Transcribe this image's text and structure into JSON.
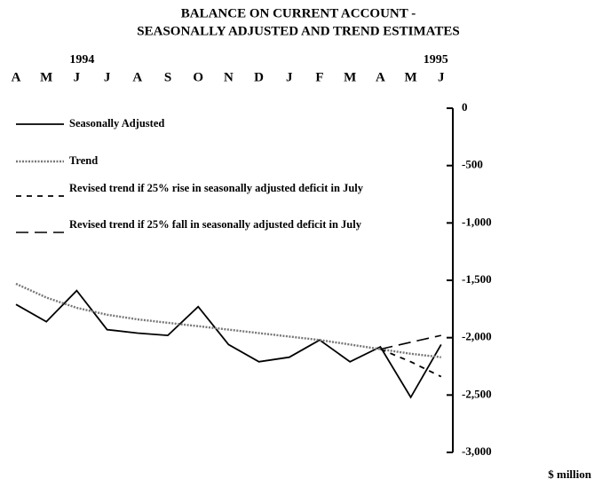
{
  "chart_data": {
    "type": "line",
    "title": [
      "BALANCE ON CURRENT ACCOUNT -",
      "SEASONALLY ADJUSTED AND TREND ESTIMATES"
    ],
    "categories": [
      "A",
      "M",
      "J",
      "J",
      "A",
      "S",
      "O",
      "N",
      "D",
      "J",
      "F",
      "M",
      "A",
      "M",
      "J"
    ],
    "years": [
      {
        "label": "1994",
        "category_index": 2
      },
      {
        "label": "1995",
        "category_index": 14
      }
    ],
    "y_axis_label": "$ million",
    "ylim": [
      -3000,
      0
    ],
    "yticks": [
      {
        "value": 0,
        "label": "0"
      },
      {
        "value": -500,
        "label": "-500"
      },
      {
        "value": -1000,
        "label": "-1,000"
      },
      {
        "value": -1500,
        "label": "-1,500"
      },
      {
        "value": -2000,
        "label": "-2,000"
      },
      {
        "value": -2500,
        "label": "-2,500"
      },
      {
        "value": -3000,
        "label": "-3,000"
      }
    ],
    "axis_side": "right",
    "legend_position": "upper left",
    "series": [
      {
        "name": "Seasonally Adjusted",
        "color": "#000000",
        "line_style": "solid",
        "values": [
          -1710,
          -1860,
          -1590,
          -1930,
          -1960,
          -1980,
          -1730,
          -2060,
          -2210,
          -2170,
          -2020,
          -2210,
          -2080,
          -2520,
          -2060
        ]
      },
      {
        "name": "Trend",
        "color": "#777777",
        "line_style": "dotted",
        "values": [
          -1530,
          -1650,
          -1740,
          -1800,
          -1840,
          -1870,
          -1900,
          -1930,
          -1960,
          -1990,
          -2020,
          -2060,
          -2100,
          -2140,
          -2170
        ]
      },
      {
        "name": "Revised trend if 25% rise in seasonally adjusted deficit in July",
        "color": "#000000",
        "line_style": "short-dash",
        "values": [
          null,
          null,
          null,
          null,
          null,
          null,
          null,
          null,
          null,
          null,
          null,
          null,
          -2100,
          -2210,
          -2340
        ]
      },
      {
        "name": "Revised trend if 25% fall in seasonally adjusted deficit in July",
        "color": "#000000",
        "line_style": "long-dash",
        "values": [
          null,
          null,
          null,
          null,
          null,
          null,
          null,
          null,
          null,
          null,
          null,
          null,
          -2100,
          -2040,
          -1980
        ]
      }
    ]
  }
}
